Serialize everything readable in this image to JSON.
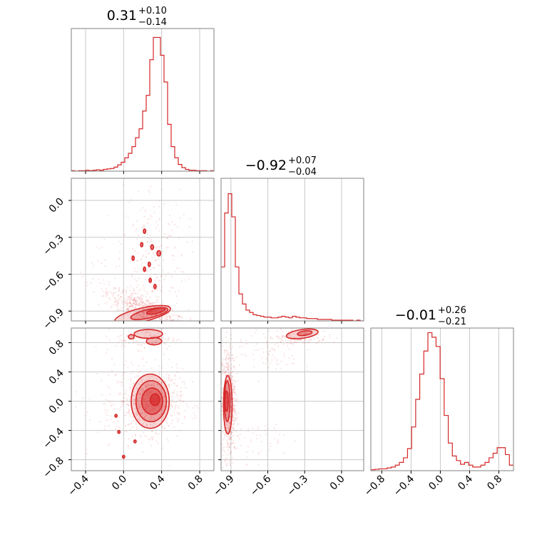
{
  "chart_data": {
    "type": "corner",
    "color": "#d62728",
    "grid": true,
    "titles": [
      {
        "median": "0.31",
        "plus": "+0.10",
        "minus": "−0.14"
      },
      {
        "median": "−0.92",
        "plus": "+0.07",
        "minus": "−0.04"
      },
      {
        "median": "−0.01",
        "plus": "+0.26",
        "minus": "−0.21"
      }
    ],
    "params": [
      {
        "range": [
          -0.55,
          0.95
        ],
        "ticks": [
          -0.4,
          0.0,
          0.4,
          0.8
        ],
        "tick_labels": [
          "−0.4",
          "0.0",
          "0.4",
          "0.8"
        ]
      },
      {
        "range": [
          -0.98,
          0.18
        ],
        "ticks": [
          -0.9,
          -0.6,
          -0.3,
          0.0
        ],
        "tick_labels": [
          "−0.9",
          "−0.6",
          "−0.3",
          "0.0"
        ]
      },
      {
        "range": [
          -0.95,
          1.0
        ],
        "ticks": [
          -0.8,
          -0.4,
          0.0,
          0.4,
          0.8
        ],
        "tick_labels": [
          "−0.8",
          "−0.4",
          "0.0",
          "0.4",
          "0.8"
        ]
      }
    ],
    "y_ticks": {
      "row1": {
        "ticks": [
          -0.9,
          -0.6,
          -0.3,
          0.0
        ],
        "tick_labels": [
          "−0.9",
          "−0.6",
          "−0.3",
          "0.0"
        ]
      },
      "row2": {
        "ticks": [
          -0.8,
          -0.4,
          0.0,
          0.4,
          0.8
        ],
        "tick_labels": [
          "−0.8",
          "−0.4",
          "0.0",
          "0.4",
          "0.8"
        ]
      }
    },
    "histograms": [
      {
        "bins": [
          -0.55,
          0.95
        ],
        "counts": [
          1,
          0,
          1,
          1,
          2,
          1,
          2,
          3,
          2,
          4,
          5,
          6,
          9,
          14,
          20,
          30,
          40,
          55,
          75,
          95,
          135,
          170,
          250,
          300,
          300,
          260,
          200,
          105,
          55,
          30,
          15,
          8,
          4,
          2,
          2,
          1,
          1,
          1,
          0,
          1
        ],
        "ymax": 320
      },
      {
        "bins": [
          -0.98,
          0.18
        ],
        "counts": [
          70,
          140,
          165,
          135,
          70,
          35,
          22,
          14,
          11,
          8,
          7,
          6,
          5,
          5,
          4,
          4,
          5,
          6,
          5,
          4,
          6,
          5,
          4,
          4,
          3,
          3,
          3,
          2,
          2,
          2,
          2,
          1,
          1,
          1,
          1,
          1,
          1,
          0,
          1,
          0
        ],
        "ymax": 185
      },
      {
        "bins": [
          -0.95,
          1.0
        ],
        "counts": [
          2,
          3,
          4,
          4,
          6,
          8,
          12,
          18,
          28,
          48,
          95,
          155,
          210,
          260,
          300,
          290,
          270,
          200,
          120,
          60,
          32,
          22,
          14,
          18,
          12,
          8,
          8,
          12,
          18,
          28,
          38,
          50,
          50,
          35,
          12
        ],
        "ymax": 310
      }
    ],
    "pairs": [
      {
        "x_param": 0,
        "y_param": 1,
        "blobs": [
          {
            "cx": 0.25,
            "cy": -0.9,
            "rx": 0.22,
            "ry": 0.05,
            "rot": -20,
            "weight": 70
          },
          {
            "cx": 0.3,
            "cy": -0.45,
            "rx": 0.18,
            "ry": 0.3,
            "rot": 0,
            "weight": 25
          },
          {
            "cx": 0.0,
            "cy": -0.7,
            "rx": 0.3,
            "ry": 0.2,
            "rot": 0,
            "weight": 8
          }
        ],
        "contours": [
          {
            "cx": 0.2,
            "cy": -0.93,
            "rx": 0.3,
            "ry": 0.055,
            "rot": -13,
            "fill": 0.18
          },
          {
            "cx": 0.27,
            "cy": -0.92,
            "rx": 0.2,
            "ry": 0.035,
            "rot": -13,
            "fill": 0.32
          },
          {
            "cx": 0.34,
            "cy": -0.9,
            "rx": 0.1,
            "ry": 0.02,
            "rot": -13,
            "fill": 0.55
          },
          {
            "cx": 0.22,
            "cy": -0.25,
            "rx": 0.012,
            "ry": 0.018,
            "rot": 0,
            "fill": 0.6
          },
          {
            "cx": 0.19,
            "cy": -0.36,
            "rx": 0.012,
            "ry": 0.018,
            "rot": 0,
            "fill": 0.6
          },
          {
            "cx": 0.3,
            "cy": -0.38,
            "rx": 0.015,
            "ry": 0.02,
            "rot": 0,
            "fill": 0.6
          },
          {
            "cx": 0.37,
            "cy": -0.43,
            "rx": 0.02,
            "ry": 0.022,
            "rot": 0,
            "fill": 0.6
          },
          {
            "cx": 0.1,
            "cy": -0.47,
            "rx": 0.012,
            "ry": 0.018,
            "rot": 0,
            "fill": 0.6
          },
          {
            "cx": 0.22,
            "cy": -0.56,
            "rx": 0.012,
            "ry": 0.018,
            "rot": 0,
            "fill": 0.6
          },
          {
            "cx": 0.27,
            "cy": -0.52,
            "rx": 0.012,
            "ry": 0.018,
            "rot": 0,
            "fill": 0.6
          },
          {
            "cx": 0.28,
            "cy": -0.65,
            "rx": 0.012,
            "ry": 0.018,
            "rot": 0,
            "fill": 0.6
          },
          {
            "cx": 0.33,
            "cy": -0.7,
            "rx": 0.012,
            "ry": 0.018,
            "rot": 0,
            "fill": 0.6
          }
        ]
      },
      {
        "x_param": 0,
        "y_param": 2,
        "blobs": [
          {
            "cx": 0.28,
            "cy": 0.0,
            "rx": 0.17,
            "ry": 0.22,
            "rot": 0,
            "weight": 75
          },
          {
            "cx": 0.24,
            "cy": 0.85,
            "rx": 0.16,
            "ry": 0.07,
            "rot": 0,
            "weight": 15
          },
          {
            "cx": 0.0,
            "cy": -0.1,
            "rx": 0.35,
            "ry": 0.45,
            "rot": 0,
            "weight": 10
          }
        ],
        "contours": [
          {
            "cx": 0.28,
            "cy": 0.0,
            "rx": 0.2,
            "ry": 0.37,
            "rot": 0,
            "fill": 0.18
          },
          {
            "cx": 0.29,
            "cy": 0.0,
            "rx": 0.16,
            "ry": 0.28,
            "rot": 0,
            "fill": 0.3
          },
          {
            "cx": 0.3,
            "cy": 0.0,
            "rx": 0.11,
            "ry": 0.18,
            "rot": 0,
            "fill": 0.45
          },
          {
            "cx": 0.33,
            "cy": 0.02,
            "rx": 0.05,
            "ry": 0.08,
            "rot": 0,
            "fill": 0.65
          },
          {
            "cx": 0.26,
            "cy": 0.92,
            "rx": 0.15,
            "ry": 0.06,
            "rot": 0,
            "fill": 0.22
          },
          {
            "cx": 0.32,
            "cy": 0.82,
            "rx": 0.08,
            "ry": 0.05,
            "rot": 0,
            "fill": 0.3
          },
          {
            "cx": 0.08,
            "cy": 0.88,
            "rx": 0.03,
            "ry": 0.03,
            "rot": 0,
            "fill": 0.35
          },
          {
            "cx": -0.08,
            "cy": -0.2,
            "rx": 0.012,
            "ry": 0.02,
            "rot": 0,
            "fill": 0.6
          },
          {
            "cx": -0.05,
            "cy": -0.42,
            "rx": 0.012,
            "ry": 0.02,
            "rot": 0,
            "fill": 0.6
          },
          {
            "cx": 0.0,
            "cy": -0.76,
            "rx": 0.012,
            "ry": 0.02,
            "rot": 0,
            "fill": 0.6
          },
          {
            "cx": 0.12,
            "cy": -0.55,
            "rx": 0.012,
            "ry": 0.02,
            "rot": 0,
            "fill": 0.6
          }
        ]
      },
      {
        "x_param": 1,
        "y_param": 2,
        "blobs": [
          {
            "cx": -0.92,
            "cy": 0.0,
            "rx": 0.03,
            "ry": 0.38,
            "rot": 0,
            "weight": 72
          },
          {
            "cx": -0.35,
            "cy": 0.88,
            "rx": 0.12,
            "ry": 0.06,
            "rot": 0,
            "weight": 14
          },
          {
            "cx": -0.72,
            "cy": -0.55,
            "rx": 0.12,
            "ry": 0.2,
            "rot": -30,
            "weight": 6
          },
          {
            "cx": -0.6,
            "cy": 0.65,
            "rx": 0.15,
            "ry": 0.12,
            "rot": -25,
            "weight": 8
          }
        ],
        "contours": [
          {
            "cx": -0.925,
            "cy": -0.05,
            "rx": 0.035,
            "ry": 0.4,
            "rot": 0,
            "fill": 0.18
          },
          {
            "cx": -0.93,
            "cy": 0.0,
            "rx": 0.022,
            "ry": 0.28,
            "rot": 0,
            "fill": 0.32
          },
          {
            "cx": -0.935,
            "cy": 0.0,
            "rx": 0.013,
            "ry": 0.14,
            "rot": 0,
            "fill": 0.55
          },
          {
            "cx": -0.32,
            "cy": 0.92,
            "rx": 0.13,
            "ry": 0.06,
            "rot": -8,
            "fill": 0.22
          },
          {
            "cx": -0.3,
            "cy": 0.93,
            "rx": 0.06,
            "ry": 0.03,
            "rot": -8,
            "fill": 0.4
          }
        ]
      }
    ]
  }
}
